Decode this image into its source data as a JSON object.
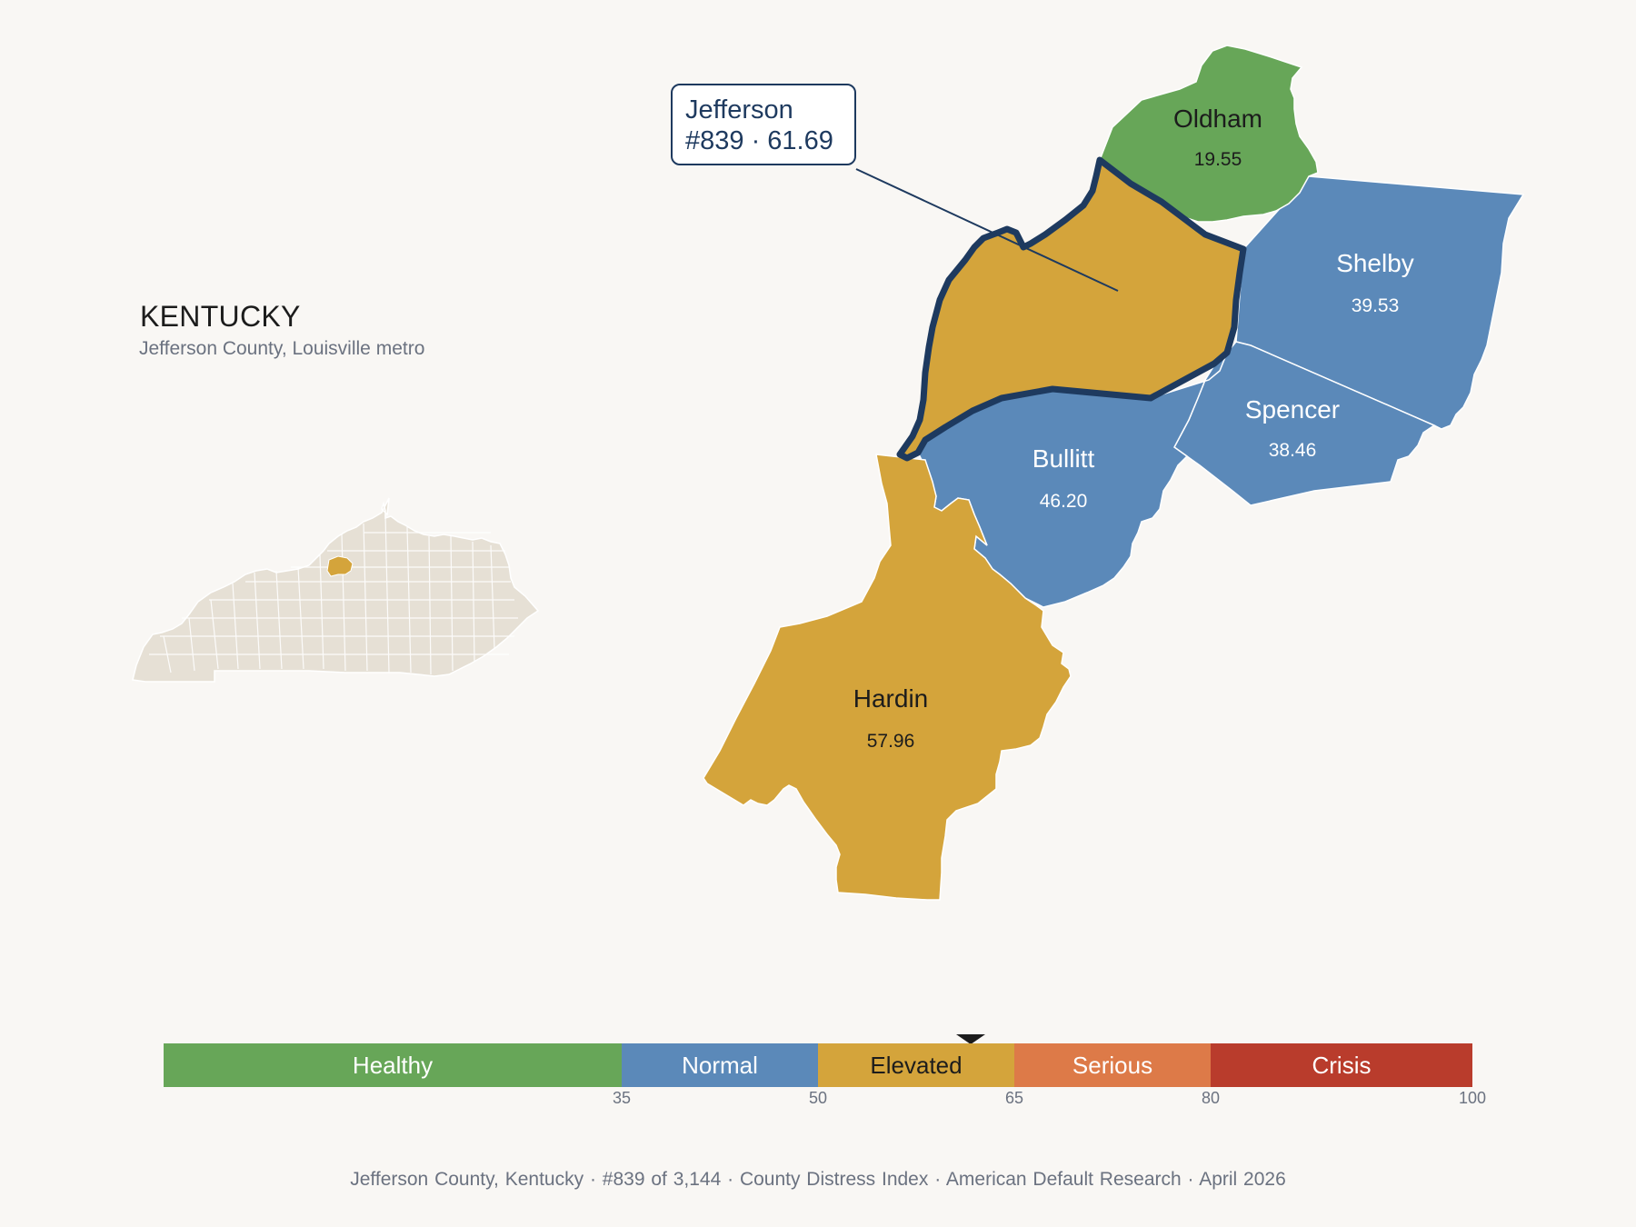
{
  "state": {
    "name": "KENTUCKY",
    "subtitle": "Jefferson County, Louisville metro"
  },
  "callout": {
    "county": "Jefferson",
    "rank_score": "#839 · 61.69"
  },
  "counties": [
    {
      "id": "oldham",
      "name": "Oldham",
      "score": "19.55",
      "category": "Healthy"
    },
    {
      "id": "shelby",
      "name": "Shelby",
      "score": "39.53",
      "category": "Normal"
    },
    {
      "id": "spencer",
      "name": "Spencer",
      "score": "38.46",
      "category": "Normal"
    },
    {
      "id": "bullitt",
      "name": "Bullitt",
      "score": "46.20",
      "category": "Normal"
    },
    {
      "id": "hardin",
      "name": "Hardin",
      "score": "57.96",
      "category": "Elevated"
    },
    {
      "id": "jefferson",
      "name": "Jefferson",
      "score": "61.69",
      "category": "Elevated",
      "highlighted": true
    }
  ],
  "scale": {
    "min": 0,
    "max": 100,
    "marker_value": 61.69,
    "segments": [
      {
        "label": "Healthy",
        "from": 0,
        "to": 35,
        "color": "#67a658",
        "text_color": "#ffffff"
      },
      {
        "label": "Normal",
        "from": 35,
        "to": 50,
        "color": "#5b89b9",
        "text_color": "#ffffff"
      },
      {
        "label": "Elevated",
        "from": 50,
        "to": 65,
        "color": "#d4a43b",
        "text_color": "#1c1c1c"
      },
      {
        "label": "Serious",
        "from": 65,
        "to": 80,
        "color": "#dd7a48",
        "text_color": "#ffffff"
      },
      {
        "label": "Crisis",
        "from": 80,
        "to": 100,
        "color": "#b93c2c",
        "text_color": "#ffffff"
      }
    ],
    "ticks": [
      "35",
      "50",
      "65",
      "80",
      "100"
    ]
  },
  "footer": {
    "county": "Jefferson County, Kentucky",
    "rank": "#839 of 3,144",
    "index": "County Distress Index",
    "publisher": "American Default Research",
    "date": "April 2026",
    "separator": "·"
  },
  "colors": {
    "background": "#f9f7f4",
    "state_fill": "#e6e0d5",
    "highlight_outline": "#1e3a5f"
  }
}
